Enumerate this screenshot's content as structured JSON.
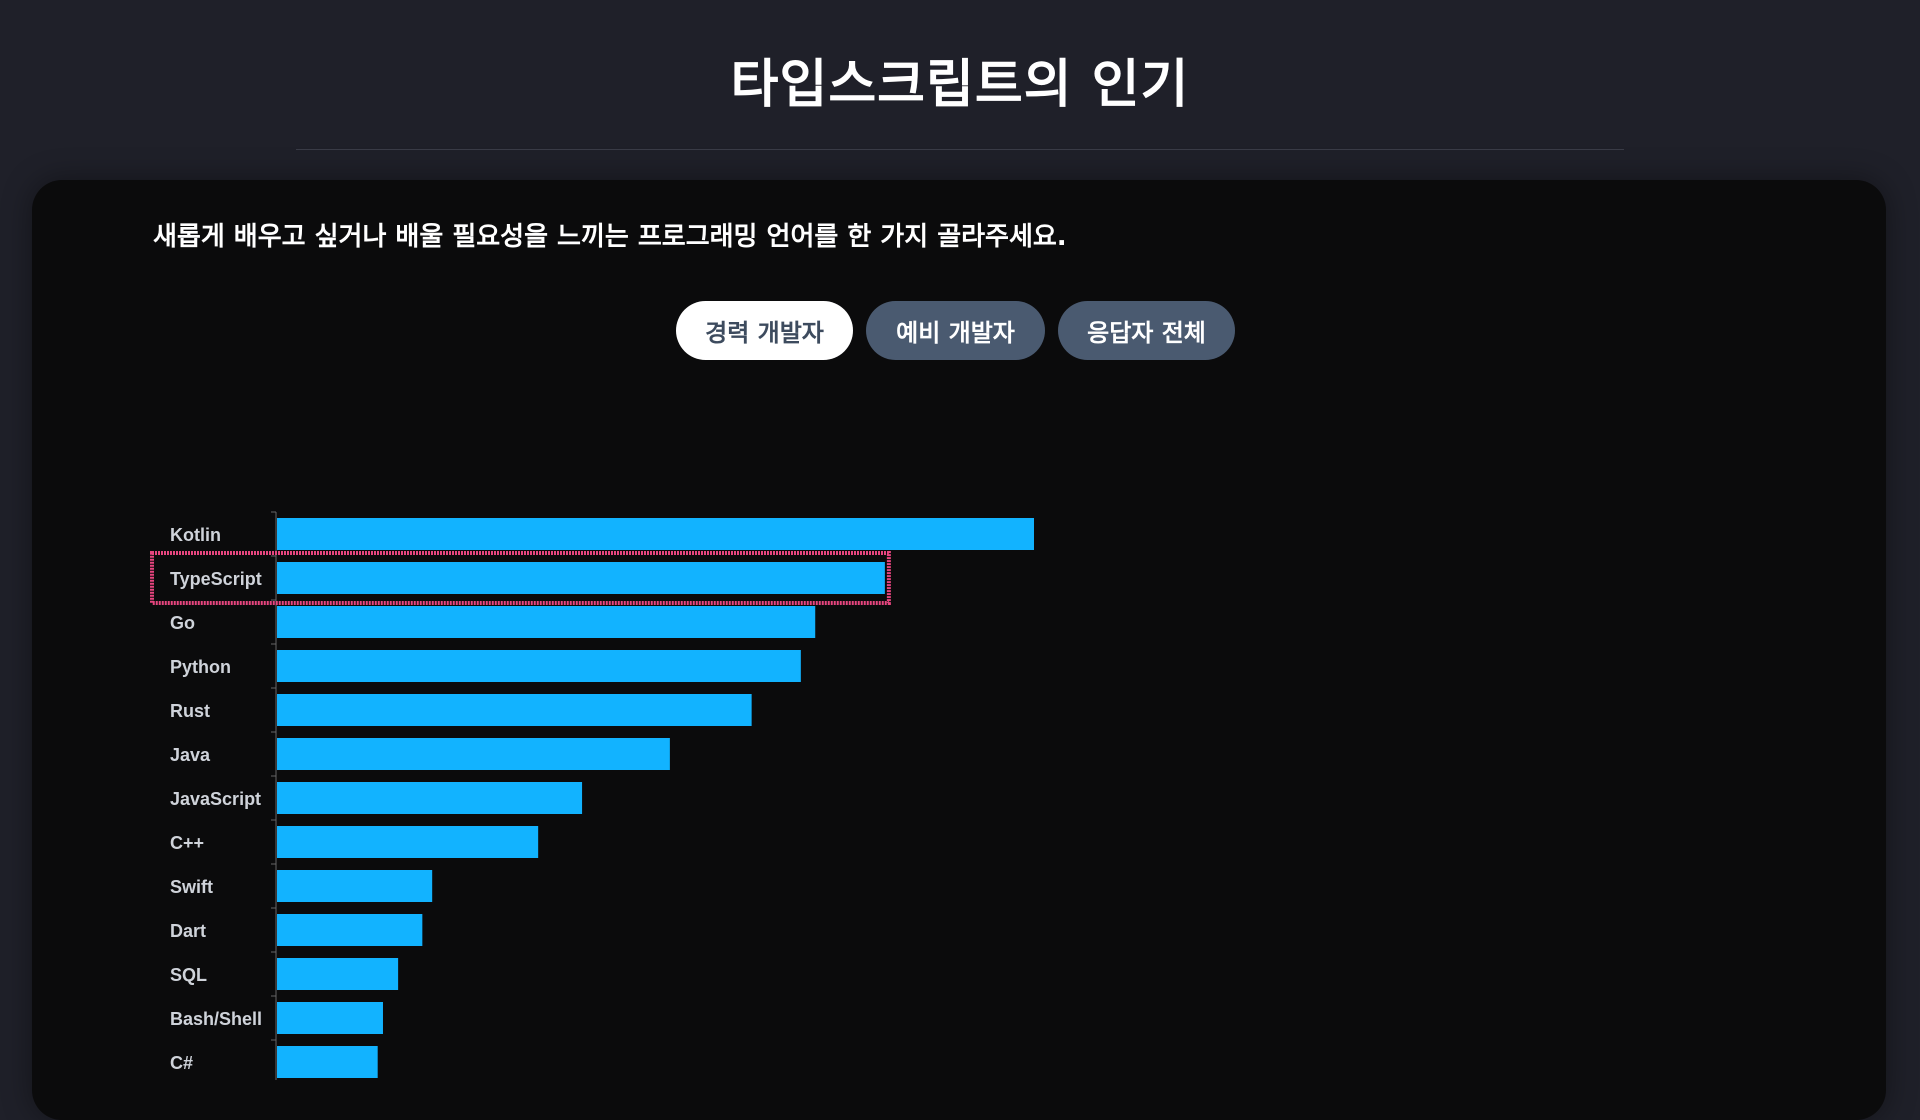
{
  "header": {
    "title": "타입스크립트의 인기"
  },
  "card": {
    "question": "새롭게 배우고 싶거나 배울 필요성을 느끼는 프로그래밍 언어를 한 가지 골라주세요.",
    "filters": [
      {
        "label": "경력 개발자",
        "active": true
      },
      {
        "label": "예비 개발자",
        "active": false
      },
      {
        "label": "응답자 전체",
        "active": false
      }
    ]
  },
  "colors": {
    "bar": "#12b3ff",
    "highlight": "#e8457f",
    "background": "#1f2029",
    "card": "#0b0b0c"
  },
  "chart_data": {
    "type": "bar",
    "orientation": "horizontal",
    "value_note": "relative lengths (Kotlin = 100); no value axis printed",
    "categories": [
      "Kotlin",
      "TypeScript",
      "Go",
      "Python",
      "Rust",
      "Java",
      "JavaScript",
      "C++",
      "Swift",
      "Dart",
      "SQL",
      "Bash/Shell",
      "C#"
    ],
    "values": [
      100,
      80.3,
      71.1,
      69.2,
      62.7,
      51.9,
      40.3,
      34.5,
      20.5,
      19.2,
      16.0,
      14.0,
      13.3
    ],
    "highlighted": "TypeScript",
    "grid": false
  }
}
